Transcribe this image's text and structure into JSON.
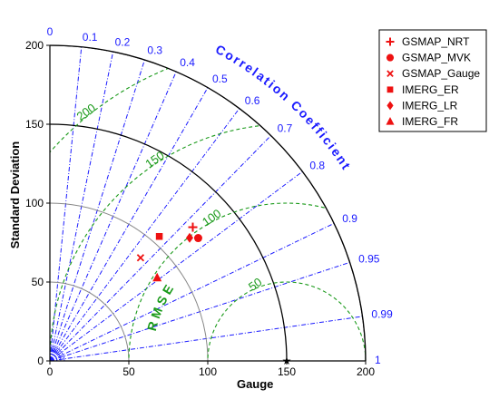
{
  "chart_data": {
    "type": "scatter",
    "subtype": "taylor-diagram",
    "xlabel": "Gauge",
    "ylabel": "Standard Deviation",
    "corr_label": "Correlation Coefficient",
    "rmse_label": "R M S E",
    "std_max": 200,
    "std_ticks": [
      0,
      50,
      100,
      150,
      200
    ],
    "corr_ticks": [
      "0",
      "0.1",
      "0.2",
      "0.3",
      "0.4",
      "0.5",
      "0.6",
      "0.7",
      "0.8",
      "0.9",
      "0.95",
      "0.99",
      "1"
    ],
    "rmse_levels": [
      50,
      100,
      150,
      200
    ],
    "reference_std": 150,
    "grid": true,
    "legend_position": "top-right",
    "series": [
      {
        "name": "GSMAP_NRT",
        "marker": "plus",
        "correlation": 0.73,
        "std": 124
      },
      {
        "name": "GSMAP_MVK",
        "marker": "circle",
        "correlation": 0.77,
        "std": 122
      },
      {
        "name": "GSMAP_Gauge",
        "marker": "x",
        "correlation": 0.66,
        "std": 87
      },
      {
        "name": "IMERG_ER",
        "marker": "square",
        "correlation": 0.66,
        "std": 105
      },
      {
        "name": "IMERG_LR",
        "marker": "diamond",
        "correlation": 0.75,
        "std": 118
      },
      {
        "name": "IMERG_FR",
        "marker": "triangle",
        "correlation": 0.79,
        "std": 86
      }
    ],
    "colors": {
      "markers": "#ee1111",
      "corr_lines": "#1a1aff",
      "rmse_lines": "#1a9a1a",
      "std_arcs_minor": "#888888",
      "std_arcs_major": "#000000"
    }
  }
}
